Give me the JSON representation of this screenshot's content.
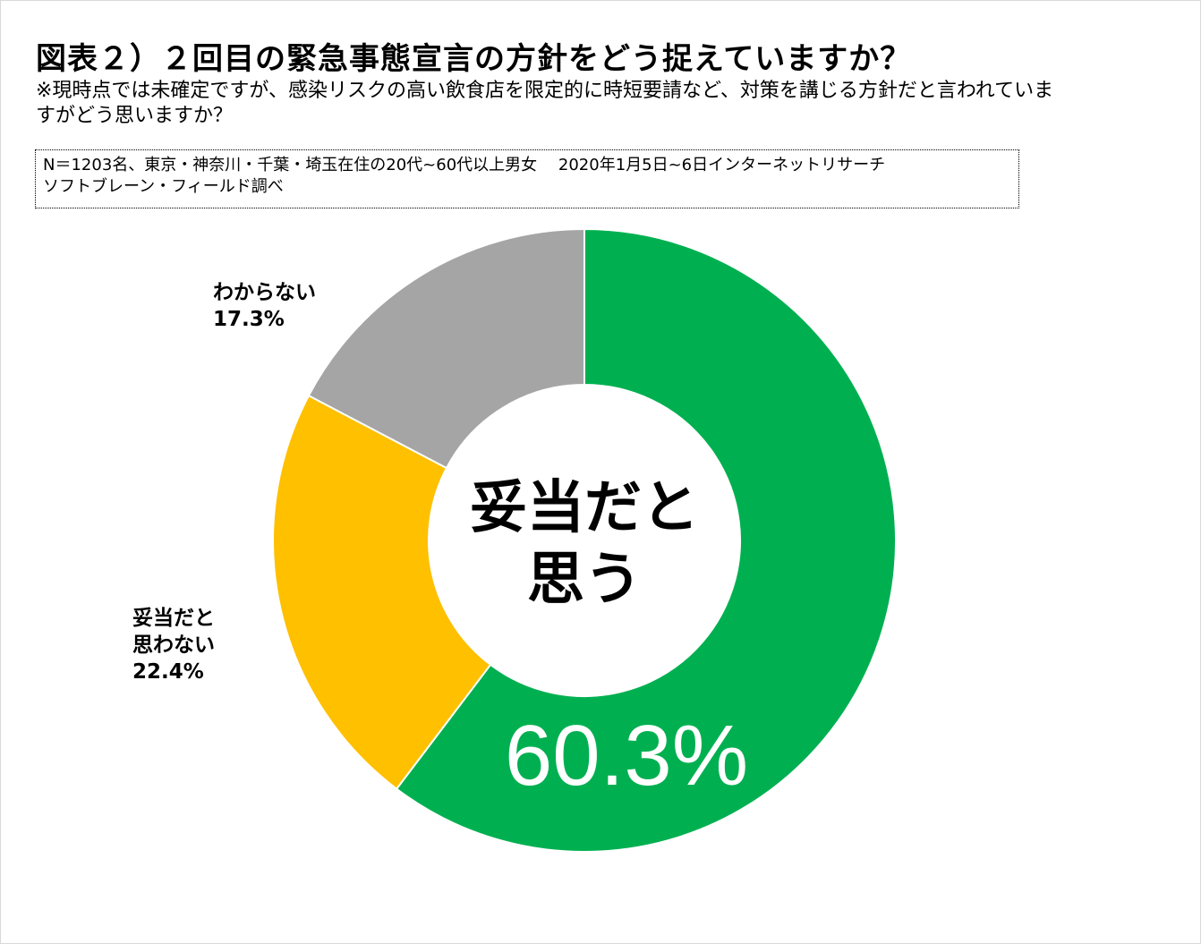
{
  "title": "図表２）２回目の緊急事態宣言の方針をどう捉えていますか？",
  "subtitle": "※現時点では未確定ですが、感染リスクの高い飲食店を限定的に時短要請など、対策を講じる方針だと言われていますがどう思いますか？",
  "note": {
    "line1": "N＝1203名、東京・神奈川・千葉・埼玉在住の20代~60代以上男女　 2020年1月5日~6日インターネットリサーチ",
    "line2": "ソフトブレーン・フィールド調べ"
  },
  "chart_data": {
    "type": "pie",
    "style": "donut",
    "slices": [
      {
        "name": "妥当だと思う",
        "value": 60.3,
        "label": "60.3%",
        "color": "#00b050"
      },
      {
        "name": "妥当だと思わない",
        "value": 22.4,
        "label": "22.4%",
        "color": "#ffc000"
      },
      {
        "name": "わからない",
        "value": 17.3,
        "label": "17.3%",
        "color": "#a5a5a5"
      }
    ],
    "center_text": [
      "妥当だと",
      "思う"
    ],
    "labels": {
      "not_agree": [
        "妥当だと",
        "思わない",
        "22.4%"
      ],
      "unknown": [
        "わからない",
        "17.3%"
      ]
    }
  }
}
